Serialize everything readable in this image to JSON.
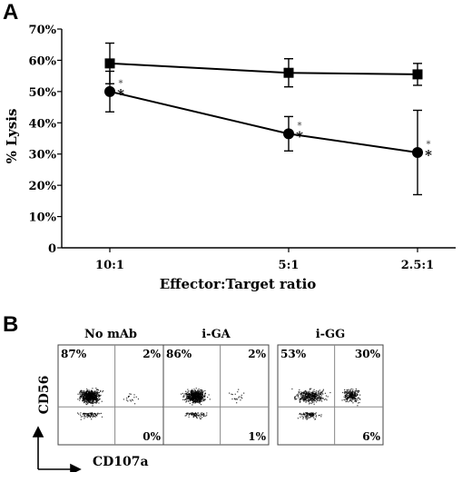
{
  "panels": {
    "a_letter": "A",
    "b_letter": "B"
  },
  "chart_data": [
    {
      "type": "line",
      "title": "",
      "xlabel": "Effector:Target ratio",
      "ylabel": "% Lysis",
      "categories": [
        "10:1",
        "5:1",
        "2.5:1"
      ],
      "ylim": [
        0,
        70
      ],
      "yticks": [
        "0",
        "10%",
        "20%",
        "30%",
        "40%",
        "50%",
        "60%",
        "70%"
      ],
      "grid": false,
      "series": [
        {
          "marker": "square",
          "values": [
            59,
            56,
            55.5
          ],
          "error": [
            6.5,
            4.5,
            3.5
          ]
        },
        {
          "marker": "circle",
          "values": [
            50,
            36.5,
            30.5
          ],
          "error": [
            6.5,
            5.5,
            13.5
          ],
          "significance": [
            "*",
            "*",
            "*"
          ]
        }
      ]
    },
    {
      "type": "scatter",
      "subtype": "flow-cytometry-dot-plots",
      "xlabel": "CD107a",
      "ylabel": "CD56",
      "plots": [
        {
          "title": "No mAb",
          "quadrants": {
            "ul": "87%",
            "ur": "2%",
            "lr": "0%"
          }
        },
        {
          "title": "i-GA",
          "quadrants": {
            "ul": "86%",
            "ur": "2%",
            "lr": "1%"
          }
        },
        {
          "title": "i-GG",
          "quadrants": {
            "ul": "53%",
            "ur": "30%",
            "lr": "6%"
          }
        }
      ]
    }
  ]
}
